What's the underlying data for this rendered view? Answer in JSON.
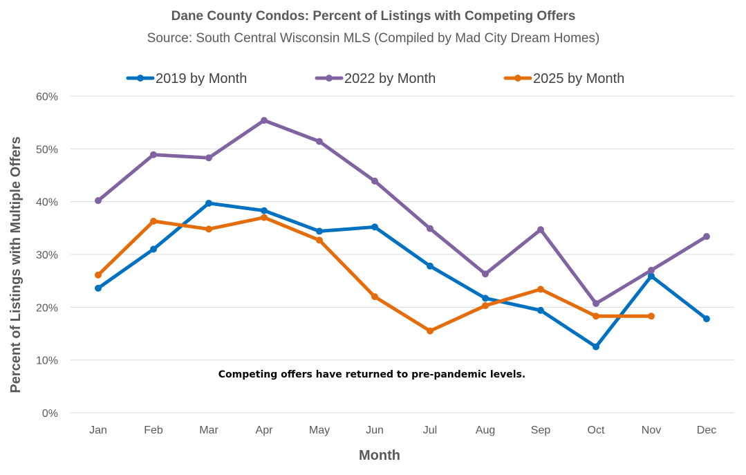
{
  "chart_data": {
    "type": "line",
    "title": "Dane County Condos: Percent of Listings with Competing Offers",
    "subtitle": "Source: South Central Wisconsin MLS (Compiled by Mad City Dream Homes)",
    "xlabel": "Month",
    "ylabel": "Percent of Listings with Multiple Offers",
    "categories": [
      "Jan",
      "Feb",
      "Mar",
      "Apr",
      "May",
      "Jun",
      "Jul",
      "Aug",
      "Sep",
      "Oct",
      "Nov",
      "Dec"
    ],
    "ylim": [
      0,
      60
    ],
    "yticks": [
      0,
      10,
      20,
      30,
      40,
      50,
      60
    ],
    "ytick_labels": [
      "0%",
      "10%",
      "20%",
      "30%",
      "40%",
      "50%",
      "60%"
    ],
    "grid": true,
    "legend_position": "top",
    "annotation": "Competing offers have returned to pre-pandemic levels.",
    "series": [
      {
        "name": "2019 by Month",
        "color": "#0070C0",
        "values": [
          23.6,
          31.0,
          39.7,
          38.3,
          34.4,
          35.2,
          27.8,
          21.7,
          19.4,
          12.5,
          25.9,
          17.8
        ]
      },
      {
        "name": "2022 by Month",
        "color": "#8064A2",
        "values": [
          40.2,
          48.9,
          48.3,
          55.4,
          51.4,
          43.9,
          34.9,
          26.3,
          34.7,
          20.7,
          27.0,
          33.4
        ]
      },
      {
        "name": "2025 by Month",
        "color": "#E46C0A",
        "values": [
          26.1,
          36.3,
          34.8,
          37.0,
          32.7,
          22.0,
          15.5,
          20.3,
          23.4,
          18.3,
          18.3,
          null
        ]
      }
    ]
  }
}
